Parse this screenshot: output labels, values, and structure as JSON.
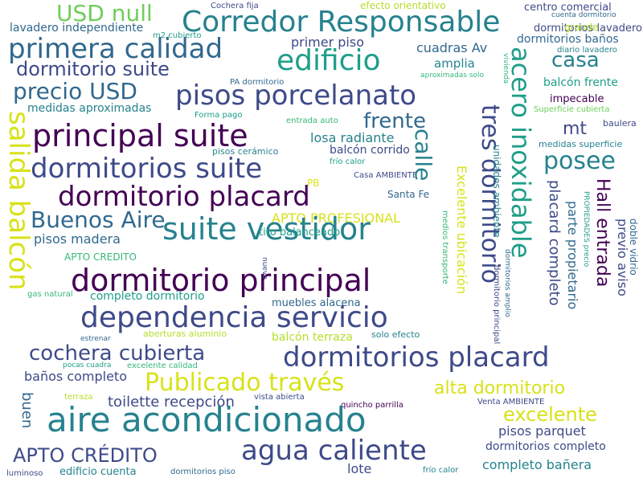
{
  "background": "#ffffff",
  "palette": [
    "#440154",
    "#3e4a89",
    "#31688e",
    "#26828e",
    "#1f9e89",
    "#35b779",
    "#6ece58",
    "#b5de2b",
    "#d8e219"
  ],
  "words": [
    {
      "text": "USD null",
      "weight": 28,
      "color": 6
    },
    {
      "text": "Cochera fija",
      "weight": 10,
      "color": 1
    },
    {
      "text": "efecto orientativo",
      "weight": 12,
      "color": 7
    },
    {
      "text": "centro comercial",
      "weight": 13,
      "color": 1
    },
    {
      "text": "cuenta dormitorio",
      "weight": 9,
      "color": 2
    },
    {
      "text": "Corredor Responsable",
      "weight": 36,
      "color": 3
    },
    {
      "text": "lavadero independiente",
      "weight": 14,
      "color": 2
    },
    {
      "text": "m2 cubierto",
      "weight": 10,
      "color": 4
    },
    {
      "text": "dormitorios lavadero",
      "weight": 13,
      "color": 1
    },
    {
      "text": "primera calidad",
      "weight": 34,
      "color": 2
    },
    {
      "text": "edificio",
      "weight": 36,
      "color": 4
    },
    {
      "text": "primer piso",
      "weight": 16,
      "color": 1
    },
    {
      "text": "cuadras Av",
      "weight": 16,
      "color": 2
    },
    {
      "text": "grande",
      "weight": 12,
      "color": 7
    },
    {
      "text": "dormitorios baños",
      "weight": 14,
      "color": 2
    },
    {
      "text": "diario lavadero",
      "weight": 10,
      "color": 3
    },
    {
      "text": "dormitorio suite",
      "weight": 24,
      "color": 1
    },
    {
      "text": "casa",
      "weight": 26,
      "color": 3
    },
    {
      "text": "amplia",
      "weight": 15,
      "color": 3
    },
    {
      "text": "aproximadas solo",
      "weight": 9,
      "color": 5
    },
    {
      "text": "PA dormitorio",
      "weight": 10,
      "color": 2
    },
    {
      "text": "balcón frente",
      "weight": 14,
      "color": 4
    },
    {
      "text": "precio USD",
      "weight": 28,
      "color": 2
    },
    {
      "text": "pisos porcelanato",
      "weight": 34,
      "color": 1
    },
    {
      "text": "impecable",
      "weight": 13,
      "color": 0
    },
    {
      "text": "medidas aproximadas",
      "weight": 14,
      "color": 3
    },
    {
      "text": "Forma pago",
      "weight": 10,
      "color": 4
    },
    {
      "text": "Superficie cubierta",
      "weight": 10,
      "color": 6
    },
    {
      "text": "entrada auto",
      "weight": 10,
      "color": 5
    },
    {
      "text": "baulera",
      "weight": 11,
      "color": 1
    },
    {
      "text": "frente",
      "weight": 26,
      "color": 2
    },
    {
      "text": "principal suite",
      "weight": 38,
      "color": 0
    },
    {
      "text": "mt",
      "weight": 22,
      "color": 1
    },
    {
      "text": "losa radiante",
      "weight": 16,
      "color": 3
    },
    {
      "text": "medidas superficie",
      "weight": 11,
      "color": 3
    },
    {
      "text": "balcón corrido",
      "weight": 14,
      "color": 1
    },
    {
      "text": "pisos cerámico",
      "weight": 11,
      "color": 3
    },
    {
      "text": "posee",
      "weight": 30,
      "color": 3
    },
    {
      "text": "frío calor",
      "weight": 10,
      "color": 4
    },
    {
      "text": "dormitorios suite",
      "weight": 34,
      "color": 1
    },
    {
      "text": "Casa AMBIENTE",
      "weight": 10,
      "color": 1
    },
    {
      "text": "PB",
      "weight": 12,
      "color": 8
    },
    {
      "text": "dormitorio placard",
      "weight": 34,
      "color": 0
    },
    {
      "text": "Santa Fe",
      "weight": 12,
      "color": 2
    },
    {
      "text": "Buenos Aire",
      "weight": 28,
      "color": 2
    },
    {
      "text": "APTO PROFESIONAL",
      "weight": 16,
      "color": 8
    },
    {
      "text": "suite vestidor",
      "weight": 38,
      "color": 3
    },
    {
      "text": "pisos madera",
      "weight": 16,
      "color": 2
    },
    {
      "text": "tiro balanceado",
      "weight": 13,
      "color": 4
    },
    {
      "text": "APTO CREDITO",
      "weight": 12,
      "color": 5
    },
    {
      "text": "gas natural",
      "weight": 10,
      "color": 5
    },
    {
      "text": "completo dormitorio",
      "weight": 14,
      "color": 4
    },
    {
      "text": "dormitorio principal",
      "weight": 38,
      "color": 0
    },
    {
      "text": "muebles alacena",
      "weight": 13,
      "color": 2
    },
    {
      "text": "dependencia servicio",
      "weight": 36,
      "color": 1
    },
    {
      "text": "aberturas aluminio",
      "weight": 11,
      "color": 7
    },
    {
      "text": "solo efecto",
      "weight": 11,
      "color": 3
    },
    {
      "text": "balcón terraza",
      "weight": 14,
      "color": 7
    },
    {
      "text": "estrenar",
      "weight": 9,
      "color": 2
    },
    {
      "text": "cochera cubierta",
      "weight": 26,
      "color": 1
    },
    {
      "text": "dormitorios placard",
      "weight": 34,
      "color": 1
    },
    {
      "text": "pocas cuadra",
      "weight": 9,
      "color": 4
    },
    {
      "text": "excelente calidad",
      "weight": 10,
      "color": 5
    },
    {
      "text": "baños completo",
      "weight": 16,
      "color": 1
    },
    {
      "text": "terraza",
      "weight": 10,
      "color": 7
    },
    {
      "text": "vista abierta",
      "weight": 10,
      "color": 1
    },
    {
      "text": "Publicado través",
      "weight": 30,
      "color": 8
    },
    {
      "text": "alta dormitorio",
      "weight": 22,
      "color": 8
    },
    {
      "text": "toilette recepción",
      "weight": 18,
      "color": 1
    },
    {
      "text": "Venta AMBIENTE",
      "weight": 10,
      "color": 1
    },
    {
      "text": "quincho parrilla",
      "weight": 10,
      "color": 0
    },
    {
      "text": "excelente",
      "weight": 24,
      "color": 8
    },
    {
      "text": "aire acondicionado",
      "weight": 42,
      "color": 3
    },
    {
      "text": "pisos parquet",
      "weight": 16,
      "color": 1
    },
    {
      "text": "APTO CRÉDITO",
      "weight": 24,
      "color": 1
    },
    {
      "text": "agua caliente",
      "weight": 34,
      "color": 1
    },
    {
      "text": "dormitorios completo",
      "weight": 14,
      "color": 1
    },
    {
      "text": "completo bañera",
      "weight": 16,
      "color": 3
    },
    {
      "text": "lote",
      "weight": 16,
      "color": 1
    },
    {
      "text": "edificio cuenta",
      "weight": 13,
      "color": 3
    },
    {
      "text": "dormitorios piso",
      "weight": 10,
      "color": 2
    },
    {
      "text": "luminoso",
      "weight": 10,
      "color": 1
    },
    {
      "text": "frío calor",
      "weight": 10,
      "color": 3
    },
    {
      "text": "salida balcón",
      "weight": 34,
      "color": 8
    },
    {
      "text": "buen",
      "weight": 18,
      "color": 2
    },
    {
      "text": "calle",
      "weight": 28,
      "color": 3
    },
    {
      "text": "tres dormitorio",
      "weight": 30,
      "color": 1
    },
    {
      "text": "acero inoxidable",
      "weight": 32,
      "color": 4
    },
    {
      "text": "Excelente ubicación",
      "weight": 16,
      "color": 8
    },
    {
      "text": "Hall entrada",
      "weight": 22,
      "color": 0
    },
    {
      "text": "unidades ambiente",
      "weight": 12,
      "color": 3
    },
    {
      "text": "dormitorio principal",
      "weight": 10,
      "color": 1
    },
    {
      "text": "medios transporte",
      "weight": 10,
      "color": 5
    },
    {
      "text": "vivienda",
      "weight": 9,
      "color": 5
    },
    {
      "text": "dormitorios amplio",
      "weight": 9,
      "color": 2
    },
    {
      "text": "nuevo",
      "weight": 9,
      "color": 1
    },
    {
      "text": "placard completo",
      "weight": 18,
      "color": 1
    },
    {
      "text": "parte propietario",
      "weight": 16,
      "color": 2
    },
    {
      "text": "previo aviso",
      "weight": 16,
      "color": 1
    },
    {
      "text": "PROPIEDADES precio",
      "weight": 9,
      "color": 4
    },
    {
      "text": "doble vidrio",
      "weight": 12,
      "color": 2
    }
  ]
}
